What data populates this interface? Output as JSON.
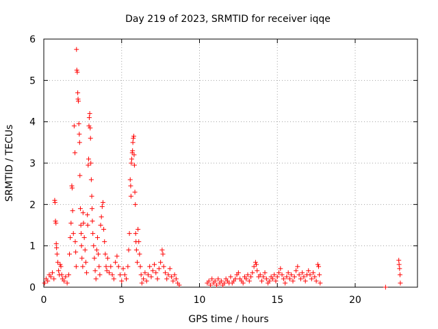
{
  "chart_data": {
    "type": "scatter",
    "title": "Day 219 of 2023, SRMTID for receiver iqqe",
    "xlabel": "GPS time / hours",
    "ylabel": "SRMTID / TECUs",
    "xlim": [
      0,
      24
    ],
    "ylim": [
      0,
      6
    ],
    "xticks": [
      "0",
      "5",
      "10",
      "15",
      "20"
    ],
    "yticks": [
      "0",
      "1",
      "2",
      "3",
      "4",
      "5",
      "6"
    ],
    "grid": true,
    "marker": "plus",
    "color": "#ff0000",
    "series": [
      {
        "name": "SRMTID",
        "points": [
          [
            0.05,
            0.1
          ],
          [
            0.15,
            0.2
          ],
          [
            0.25,
            0.15
          ],
          [
            0.35,
            0.3
          ],
          [
            0.45,
            0.25
          ],
          [
            0.55,
            0.35
          ],
          [
            0.65,
            0.2
          ],
          [
            0.7,
            2.1
          ],
          [
            0.72,
            2.05
          ],
          [
            0.75,
            1.6
          ],
          [
            0.78,
            1.55
          ],
          [
            0.8,
            1.05
          ],
          [
            0.82,
            0.95
          ],
          [
            0.85,
            0.8
          ],
          [
            0.9,
            0.6
          ],
          [
            0.95,
            0.4
          ],
          [
            1.0,
            0.3
          ],
          [
            1.05,
            0.55
          ],
          [
            1.1,
            0.5
          ],
          [
            1.15,
            0.3
          ],
          [
            1.2,
            0.2
          ],
          [
            1.3,
            0.15
          ],
          [
            1.4,
            0.25
          ],
          [
            1.5,
            0.1
          ],
          [
            1.6,
            0.3
          ],
          [
            1.65,
            0.8
          ],
          [
            1.7,
            1.2
          ],
          [
            1.75,
            1.55
          ],
          [
            1.8,
            2.45
          ],
          [
            1.82,
            2.4
          ],
          [
            1.85,
            1.85
          ],
          [
            1.9,
            1.3
          ],
          [
            1.95,
            3.9
          ],
          [
            2.0,
            3.25
          ],
          [
            2.02,
            1.1
          ],
          [
            2.05,
            0.85
          ],
          [
            2.08,
            0.5
          ],
          [
            2.1,
            5.75
          ],
          [
            2.12,
            5.25
          ],
          [
            2.15,
            5.2
          ],
          [
            2.18,
            4.7
          ],
          [
            2.2,
            4.55
          ],
          [
            2.22,
            4.5
          ],
          [
            2.25,
            3.95
          ],
          [
            2.28,
            3.7
          ],
          [
            2.3,
            3.5
          ],
          [
            2.32,
            2.7
          ],
          [
            2.35,
            1.9
          ],
          [
            2.38,
            1.5
          ],
          [
            2.4,
            1.3
          ],
          [
            2.42,
            1.0
          ],
          [
            2.45,
            0.7
          ],
          [
            2.5,
            0.5
          ],
          [
            2.52,
            1.8
          ],
          [
            2.55,
            1.55
          ],
          [
            2.6,
            1.2
          ],
          [
            2.65,
            0.9
          ],
          [
            2.7,
            0.6
          ],
          [
            2.75,
            0.35
          ],
          [
            2.8,
            1.75
          ],
          [
            2.82,
            1.5
          ],
          [
            2.85,
            2.95
          ],
          [
            2.88,
            3.1
          ],
          [
            2.9,
            3.9
          ],
          [
            2.92,
            4.1
          ],
          [
            2.95,
            4.2
          ],
          [
            2.98,
            3.85
          ],
          [
            3.0,
            3.6
          ],
          [
            3.02,
            3.0
          ],
          [
            3.05,
            2.6
          ],
          [
            3.08,
            2.2
          ],
          [
            3.1,
            1.9
          ],
          [
            3.12,
            1.6
          ],
          [
            3.15,
            1.3
          ],
          [
            3.2,
            1.0
          ],
          [
            3.25,
            0.7
          ],
          [
            3.3,
            0.4
          ],
          [
            3.35,
            0.2
          ],
          [
            3.4,
            0.9
          ],
          [
            3.45,
            1.2
          ],
          [
            3.5,
            0.8
          ],
          [
            3.55,
            0.5
          ],
          [
            3.6,
            0.3
          ],
          [
            3.65,
            1.5
          ],
          [
            3.7,
            1.7
          ],
          [
            3.75,
            1.95
          ],
          [
            3.8,
            2.05
          ],
          [
            3.85,
            1.4
          ],
          [
            3.9,
            1.1
          ],
          [
            3.95,
            0.8
          ],
          [
            4.0,
            0.5
          ],
          [
            4.05,
            0.4
          ],
          [
            4.1,
            0.7
          ],
          [
            4.2,
            0.35
          ],
          [
            4.3,
            0.5
          ],
          [
            4.4,
            0.3
          ],
          [
            4.5,
            0.2
          ],
          [
            4.6,
            0.6
          ],
          [
            4.7,
            0.75
          ],
          [
            4.8,
            0.5
          ],
          [
            4.9,
            0.3
          ],
          [
            5.0,
            0.15
          ],
          [
            5.1,
            0.45
          ],
          [
            5.2,
            0.3
          ],
          [
            5.3,
            0.2
          ],
          [
            5.4,
            0.5
          ],
          [
            5.45,
            0.9
          ],
          [
            5.5,
            1.3
          ],
          [
            5.55,
            2.6
          ],
          [
            5.58,
            2.45
          ],
          [
            5.6,
            2.2
          ],
          [
            5.62,
            3.0
          ],
          [
            5.65,
            3.1
          ],
          [
            5.68,
            3.25
          ],
          [
            5.7,
            3.3
          ],
          [
            5.72,
            3.5
          ],
          [
            5.75,
            3.6
          ],
          [
            5.78,
            3.65
          ],
          [
            5.8,
            3.2
          ],
          [
            5.82,
            2.95
          ],
          [
            5.85,
            2.3
          ],
          [
            5.88,
            2.0
          ],
          [
            5.9,
            1.3
          ],
          [
            5.92,
            1.1
          ],
          [
            5.95,
            0.9
          ],
          [
            6.0,
            0.6
          ],
          [
            6.05,
            1.4
          ],
          [
            6.1,
            1.1
          ],
          [
            6.15,
            0.8
          ],
          [
            6.2,
            0.5
          ],
          [
            6.25,
            0.3
          ],
          [
            6.3,
            0.1
          ],
          [
            6.4,
            0.2
          ],
          [
            6.5,
            0.35
          ],
          [
            6.6,
            0.15
          ],
          [
            6.7,
            0.3
          ],
          [
            6.8,
            0.5
          ],
          [
            6.9,
            0.25
          ],
          [
            7.0,
            0.4
          ],
          [
            7.1,
            0.55
          ],
          [
            7.2,
            0.35
          ],
          [
            7.3,
            0.2
          ],
          [
            7.4,
            0.45
          ],
          [
            7.5,
            0.6
          ],
          [
            7.6,
            0.9
          ],
          [
            7.65,
            0.8
          ],
          [
            7.7,
            0.5
          ],
          [
            7.8,
            0.35
          ],
          [
            7.9,
            0.2
          ],
          [
            8.0,
            0.3
          ],
          [
            8.1,
            0.45
          ],
          [
            8.2,
            0.25
          ],
          [
            8.3,
            0.15
          ],
          [
            8.4,
            0.3
          ],
          [
            8.5,
            0.2
          ],
          [
            8.6,
            0.1
          ],
          [
            8.7,
            0.05
          ],
          [
            10.5,
            0.1
          ],
          [
            10.6,
            0.15
          ],
          [
            10.7,
            0.05
          ],
          [
            10.8,
            0.2
          ],
          [
            10.9,
            0.1
          ],
          [
            11.0,
            0.15
          ],
          [
            11.1,
            0.05
          ],
          [
            11.2,
            0.2
          ],
          [
            11.3,
            0.1
          ],
          [
            11.4,
            0.15
          ],
          [
            11.5,
            0.05
          ],
          [
            11.6,
            0.1
          ],
          [
            11.7,
            0.2
          ],
          [
            11.8,
            0.15
          ],
          [
            11.9,
            0.1
          ],
          [
            12.0,
            0.25
          ],
          [
            12.1,
            0.1
          ],
          [
            12.2,
            0.15
          ],
          [
            12.3,
            0.2
          ],
          [
            12.4,
            0.3
          ],
          [
            12.5,
            0.35
          ],
          [
            12.6,
            0.2
          ],
          [
            12.7,
            0.15
          ],
          [
            12.8,
            0.1
          ],
          [
            12.9,
            0.25
          ],
          [
            13.0,
            0.2
          ],
          [
            13.1,
            0.3
          ],
          [
            13.2,
            0.15
          ],
          [
            13.3,
            0.25
          ],
          [
            13.4,
            0.35
          ],
          [
            13.5,
            0.5
          ],
          [
            13.6,
            0.6
          ],
          [
            13.65,
            0.55
          ],
          [
            13.7,
            0.4
          ],
          [
            13.8,
            0.25
          ],
          [
            13.9,
            0.3
          ],
          [
            14.0,
            0.15
          ],
          [
            14.1,
            0.25
          ],
          [
            14.2,
            0.35
          ],
          [
            14.3,
            0.2
          ],
          [
            14.4,
            0.1
          ],
          [
            14.5,
            0.15
          ],
          [
            14.6,
            0.25
          ],
          [
            14.7,
            0.2
          ],
          [
            14.8,
            0.3
          ],
          [
            14.9,
            0.15
          ],
          [
            15.0,
            0.25
          ],
          [
            15.1,
            0.35
          ],
          [
            15.2,
            0.45
          ],
          [
            15.3,
            0.3
          ],
          [
            15.4,
            0.2
          ],
          [
            15.5,
            0.1
          ],
          [
            15.6,
            0.25
          ],
          [
            15.7,
            0.35
          ],
          [
            15.8,
            0.2
          ],
          [
            15.9,
            0.3
          ],
          [
            16.0,
            0.15
          ],
          [
            16.1,
            0.25
          ],
          [
            16.2,
            0.4
          ],
          [
            16.3,
            0.5
          ],
          [
            16.4,
            0.3
          ],
          [
            16.5,
            0.2
          ],
          [
            16.6,
            0.35
          ],
          [
            16.7,
            0.25
          ],
          [
            16.8,
            0.15
          ],
          [
            16.9,
            0.3
          ],
          [
            17.0,
            0.4
          ],
          [
            17.1,
            0.3
          ],
          [
            17.2,
            0.2
          ],
          [
            17.3,
            0.35
          ],
          [
            17.4,
            0.25
          ],
          [
            17.5,
            0.15
          ],
          [
            17.6,
            0.55
          ],
          [
            17.65,
            0.5
          ],
          [
            17.7,
            0.3
          ],
          [
            17.75,
            0.1
          ],
          [
            21.95,
            0.0
          ],
          [
            22.8,
            0.65
          ],
          [
            22.82,
            0.55
          ],
          [
            22.85,
            0.45
          ],
          [
            22.88,
            0.3
          ],
          [
            22.9,
            0.1
          ]
        ]
      }
    ]
  }
}
